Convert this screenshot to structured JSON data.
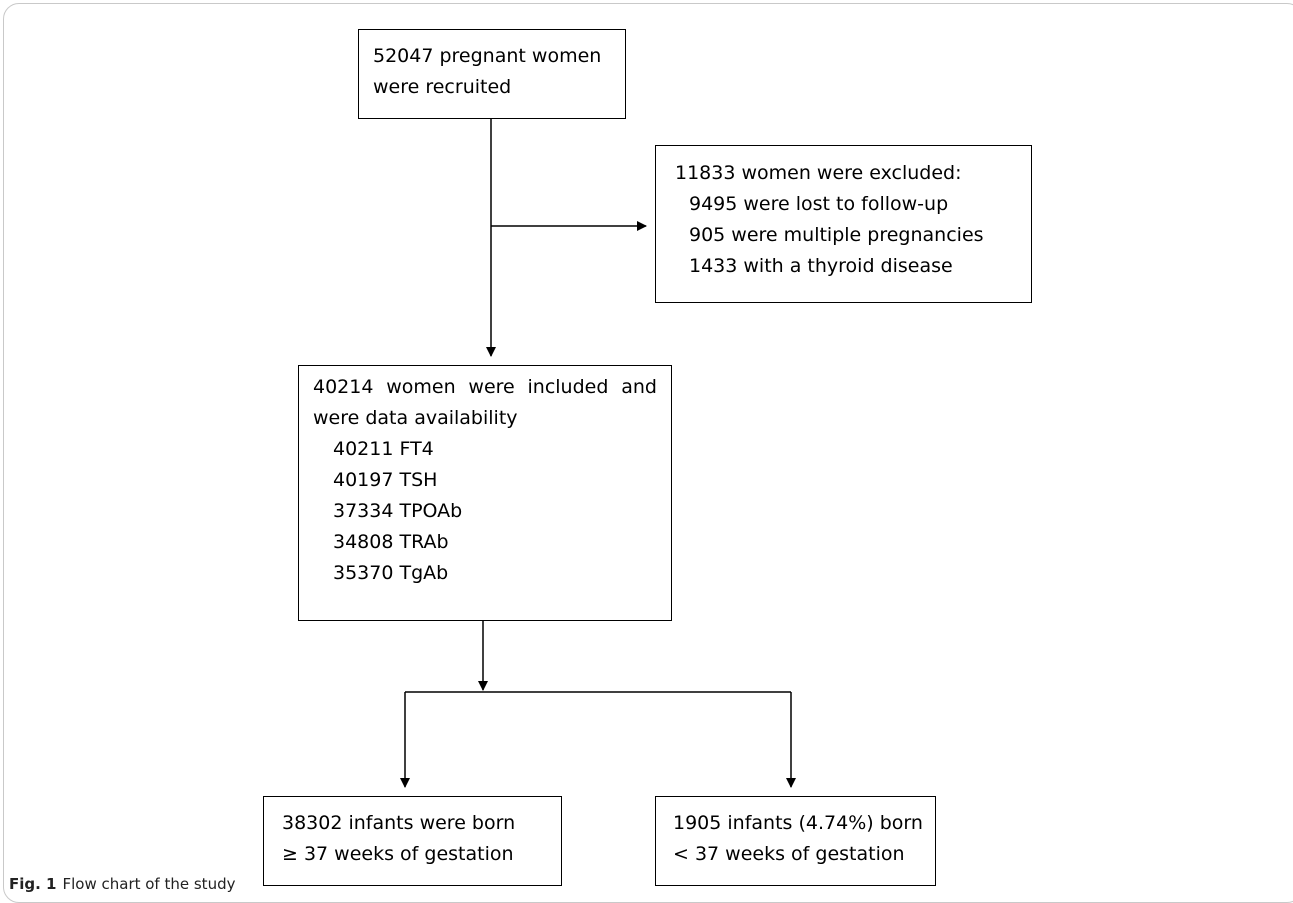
{
  "diagram": {
    "recruited": {
      "lines": [
        "52047 pregnant women",
        "were recruited"
      ]
    },
    "excluded": {
      "heading": "11833 women were excluded:",
      "items": [
        "9495 were lost to follow-up",
        "905 were multiple pregnancies",
        "1433 with a thyroid disease"
      ]
    },
    "included": {
      "line1_words": [
        "40214",
        "women",
        "were",
        "included",
        "and"
      ],
      "line2": "were data availability",
      "items": [
        "40211 FT4",
        "40197 TSH",
        "37334 TPOAb",
        "34808 TRAb",
        "35370 TgAb"
      ]
    },
    "term": {
      "lines": [
        "38302 infants were born",
        "≥ 37 weeks of gestation"
      ]
    },
    "preterm": {
      "lines": [
        "1905 infants (4.74%) born",
        "< 37 weeks of gestation"
      ]
    }
  },
  "caption": {
    "label": "Fig. 1",
    "text": "Flow chart of the study"
  }
}
